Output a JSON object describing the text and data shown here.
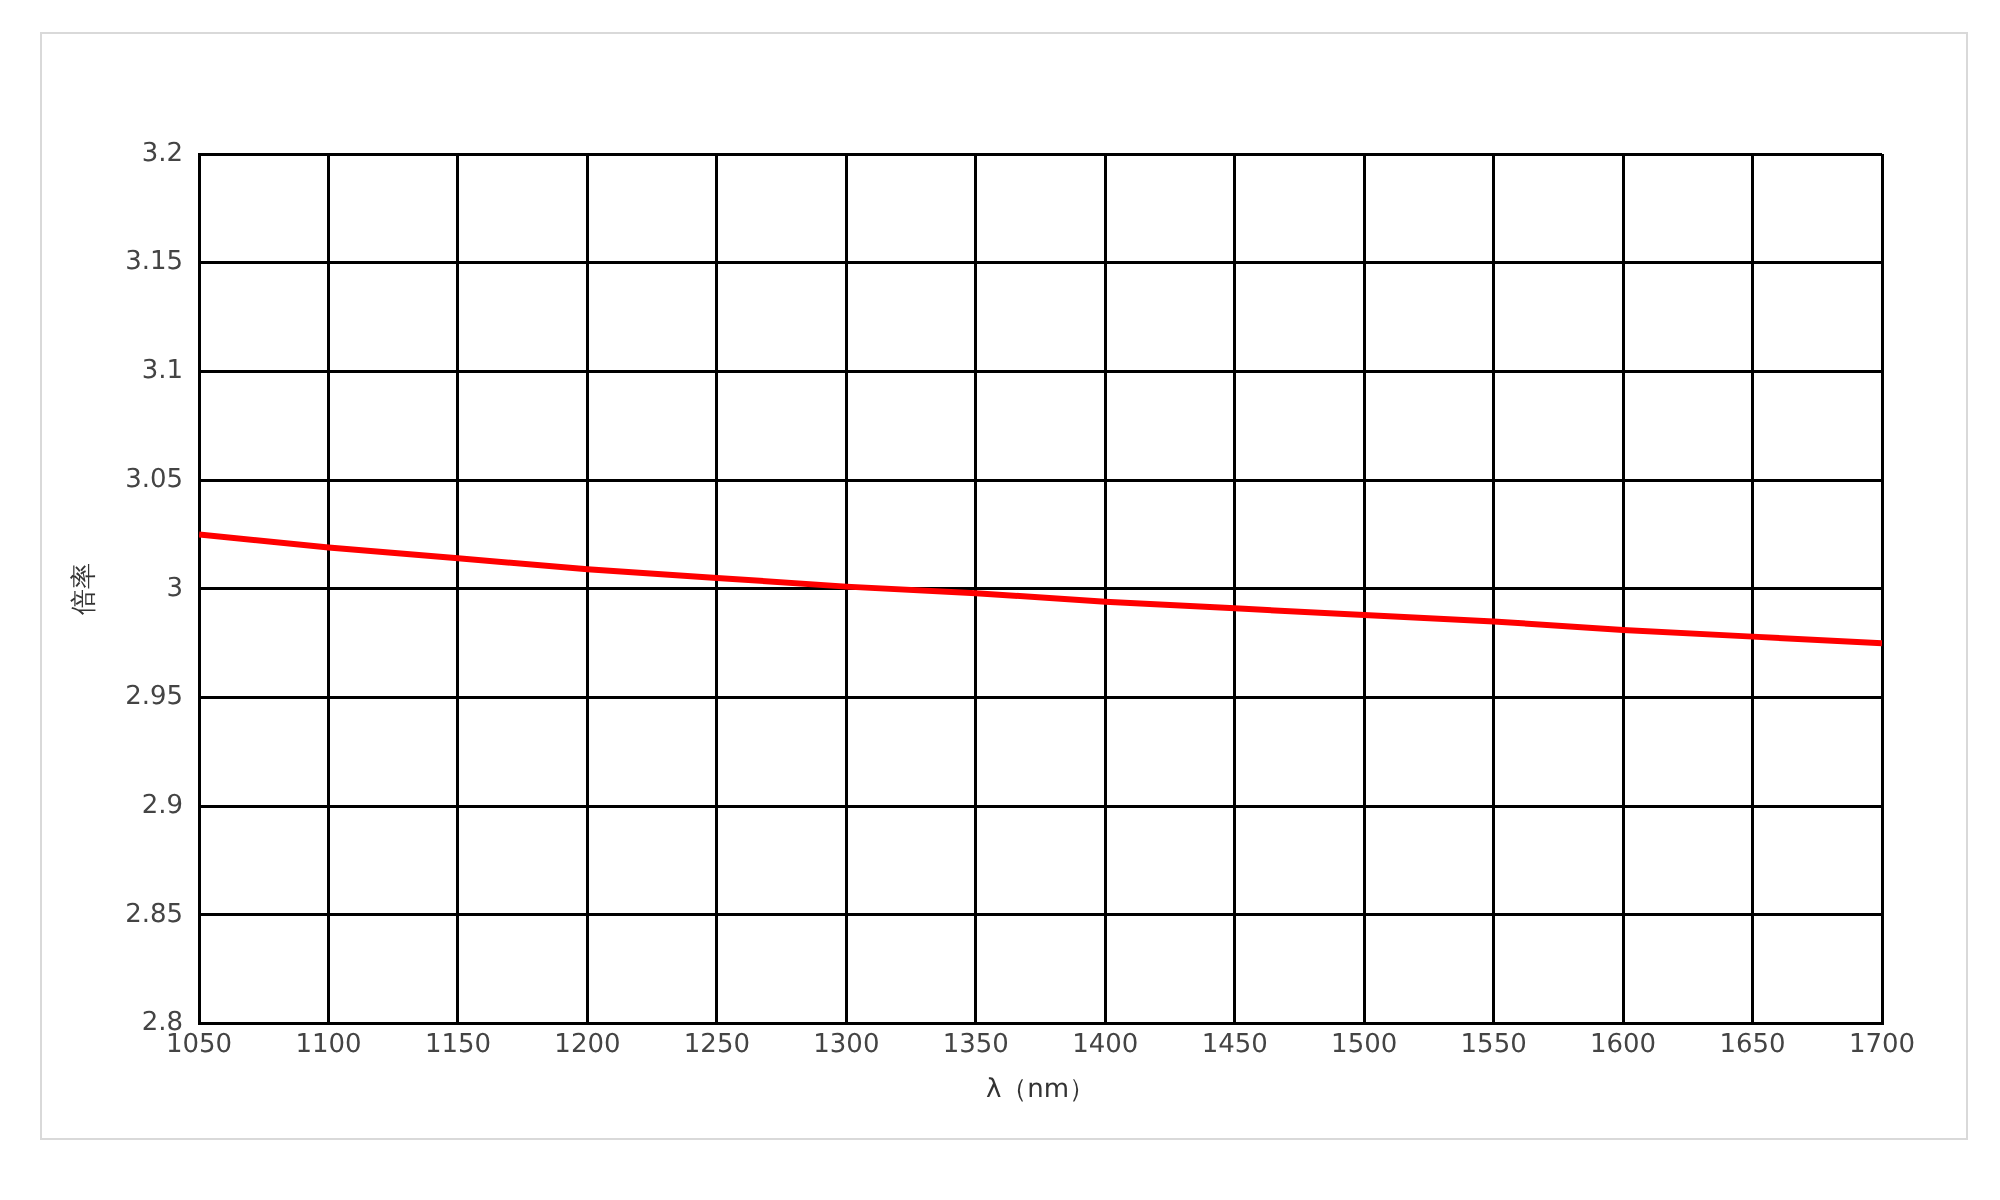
{
  "chart_data": {
    "type": "line",
    "xlabel": "λ（nm）",
    "ylabel": "倍率",
    "x": [
      1050,
      1100,
      1150,
      1200,
      1250,
      1300,
      1350,
      1400,
      1450,
      1500,
      1550,
      1600,
      1650,
      1700
    ],
    "series": [
      {
        "color": "#ff0000",
        "values": [
          3.025,
          3.019,
          3.014,
          3.009,
          3.005,
          3.001,
          2.998,
          2.994,
          2.991,
          2.988,
          2.985,
          2.981,
          2.978,
          2.975
        ]
      }
    ],
    "xlim": [
      1050,
      1700
    ],
    "xticks": [
      1050,
      1100,
      1150,
      1200,
      1250,
      1300,
      1350,
      1400,
      1450,
      1500,
      1550,
      1600,
      1650,
      1700
    ],
    "ylim": [
      2.8,
      3.2
    ],
    "yticks": [
      2.8,
      2.85,
      2.9,
      2.95,
      3,
      3.05,
      3.1,
      3.15,
      3.2
    ],
    "grid": true,
    "legend": false,
    "marker": "none",
    "line_style": "solid"
  }
}
